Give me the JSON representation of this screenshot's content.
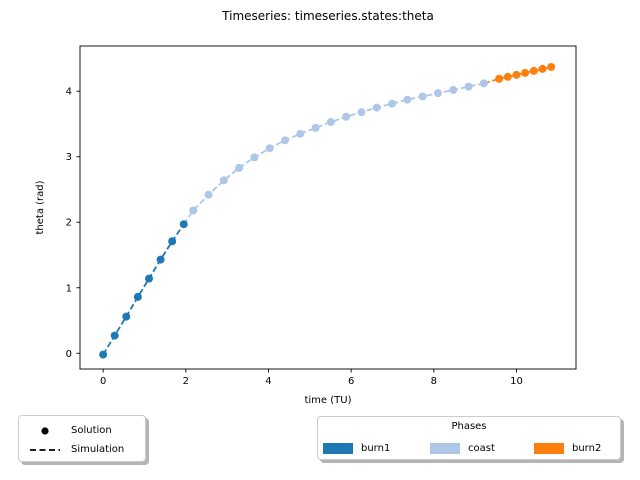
{
  "title": "Timeseries: timeseries.states:theta",
  "chart_data": {
    "type": "line",
    "title": "Timeseries: timeseries.states:theta",
    "xlabel": "time (TU)",
    "ylabel": "theta (rad)",
    "xlim": [
      -0.56,
      11.44
    ],
    "ylim": [
      -0.24,
      4.69
    ],
    "xticks": [
      0,
      2,
      4,
      6,
      8,
      10
    ],
    "yticks": [
      0,
      1,
      2,
      3,
      4
    ],
    "grid": false,
    "legend_position": "below",
    "line_style": "dashed",
    "marker": "circle",
    "series": [
      {
        "name": "burn1",
        "color": "#1f77b4",
        "x": [
          0.0,
          0.28,
          0.56,
          0.84,
          1.11,
          1.39,
          1.67,
          1.95
        ],
        "y": [
          -0.02,
          0.27,
          0.56,
          0.86,
          1.14,
          1.43,
          1.71,
          1.97
        ]
      },
      {
        "name": "coast",
        "color": "#aec7e8",
        "x": [
          2.18,
          2.55,
          2.92,
          3.29,
          3.66,
          4.03,
          4.4,
          4.77,
          5.14,
          5.51,
          5.88,
          6.25,
          6.62,
          6.99,
          7.36,
          7.73,
          8.1,
          8.47,
          8.84,
          9.21
        ],
        "y": [
          2.18,
          2.42,
          2.64,
          2.83,
          2.99,
          3.13,
          3.25,
          3.35,
          3.44,
          3.53,
          3.61,
          3.68,
          3.75,
          3.81,
          3.87,
          3.92,
          3.97,
          4.02,
          4.07,
          4.12
        ]
      },
      {
        "name": "burn2",
        "color": "#ff7f0e",
        "x": [
          9.58,
          9.79,
          10.0,
          10.21,
          10.42,
          10.63,
          10.84
        ],
        "y": [
          4.19,
          4.22,
          4.25,
          4.28,
          4.31,
          4.34,
          4.37
        ]
      }
    ]
  },
  "legend_style": {
    "items": [
      {
        "label": "Solution",
        "marker": "dot"
      },
      {
        "label": "Simulation",
        "marker": "dashed-line"
      }
    ]
  },
  "legend_phases": {
    "title": "Phases",
    "items": [
      {
        "label": "burn1",
        "color": "#1f77b4"
      },
      {
        "label": "coast",
        "color": "#aec7e8"
      },
      {
        "label": "burn2",
        "color": "#ff7f0e"
      }
    ]
  },
  "colors": {
    "burn1": "#1f77b4",
    "coast": "#aec7e8",
    "burn2": "#ff7f0e",
    "axis": "#000000",
    "legend_border": "#cccccc",
    "legend_shadow": "#b4b4b4"
  }
}
